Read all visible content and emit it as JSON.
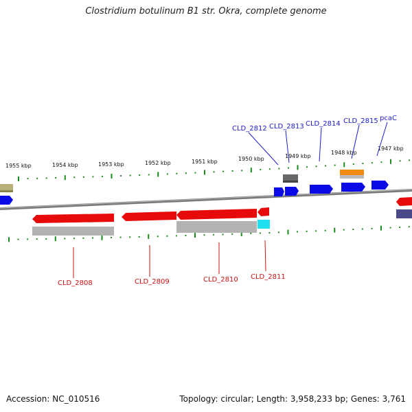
{
  "title": "Clostridium botulinum B1 str. Okra, complete genome",
  "footer": {
    "accession": "Accession: NC_010516",
    "summary": "Topology: circular; Length: 3,958,233 bp; Genes: 3,761"
  },
  "ticks": [
    "1955 kbp",
    "1954 kbp",
    "1953 kbp",
    "1952 kbp",
    "1951 kbp",
    "1950 kbp",
    "1949 kbp",
    "1948 kbp",
    "1947 kbp"
  ],
  "genes_top": [
    "CLD_2812",
    "CLD_2813",
    "CLD_2814",
    "CLD_2815",
    "pcaC"
  ],
  "genes_bottom": [
    "CLD_2808",
    "CLD_2809",
    "CLD_2810",
    "CLD_2811"
  ],
  "colors": {
    "forward_gene": "#0a0ae6",
    "reverse_gene": "#e60a0a",
    "backbone": "#808080",
    "tick": "#1a8a1a",
    "top_label": "#1a1acc",
    "bottom_label": "#cc1111"
  }
}
